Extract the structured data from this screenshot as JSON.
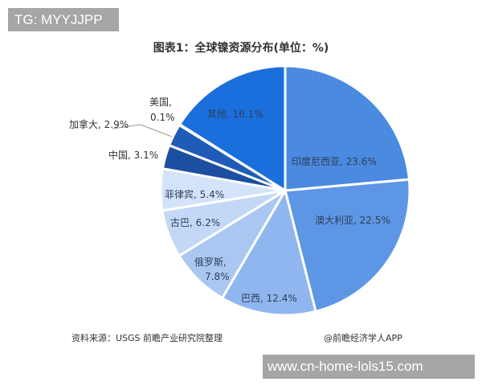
{
  "watermarks": {
    "tg": "TG: MYYJJPP",
    "url": "www.cn-home-lols15.com"
  },
  "footer": {
    "source": "资料来源：USGS 前瞻产业研究院整理",
    "credit": "@前瞻经济学人APP"
  },
  "chart_data": {
    "type": "pie",
    "title": "图表1：全球镍资源分布(单位：%)",
    "unit": "%",
    "start_angle": "12 o'clock, clockwise",
    "slices": [
      {
        "label": "印度尼西亚",
        "value": 23.6,
        "color": "#4a8ae0",
        "text": "印度尼西亚, 23.6%"
      },
      {
        "label": "澳大利亚",
        "value": 22.5,
        "color": "#5d96e4",
        "text": "澳大利亚, 22.5%"
      },
      {
        "label": "巴西",
        "value": 12.4,
        "color": "#8fb6ee",
        "text": "巴西, 12.4%"
      },
      {
        "label": "俄罗斯",
        "value": 7.8,
        "color": "#a9c7f1",
        "text_line1": "俄罗斯,",
        "text_line2": "7.8%"
      },
      {
        "label": "古巴",
        "value": 6.2,
        "color": "#c2d8f6",
        "text": "古巴, 6.2%"
      },
      {
        "label": "菲律宾",
        "value": 5.4,
        "color": "#d3e3f9",
        "text": "菲律宾, 5.4%"
      },
      {
        "label": "中国",
        "value": 3.1,
        "color": "#1d4fa0",
        "text": "中国, 3.1%"
      },
      {
        "label": "加拿大",
        "value": 2.9,
        "color": "#1f5cb8",
        "text": "加拿大, 2.9%"
      },
      {
        "label": "美国",
        "value": 0.1,
        "color": "#2a6ad0",
        "text_line1": "美国,",
        "text_line2": "0.1%"
      },
      {
        "label": "其他",
        "value": 16.1,
        "color": "#1a6fdc",
        "text": "其他, 16.1%"
      }
    ]
  }
}
